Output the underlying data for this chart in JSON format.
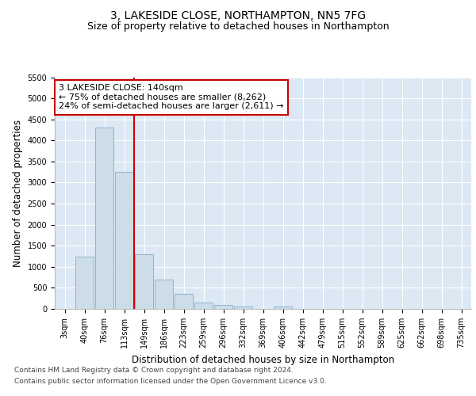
{
  "title": "3, LAKESIDE CLOSE, NORTHAMPTON, NN5 7FG",
  "subtitle": "Size of property relative to detached houses in Northampton",
  "xlabel": "Distribution of detached houses by size in Northampton",
  "ylabel": "Number of detached properties",
  "bar_color": "#ccdde8",
  "bar_edge_color": "#88aac8",
  "background_color": "#dce8f3",
  "categories": [
    "3sqm",
    "40sqm",
    "76sqm",
    "113sqm",
    "149sqm",
    "186sqm",
    "223sqm",
    "259sqm",
    "296sqm",
    "332sqm",
    "369sqm",
    "406sqm",
    "442sqm",
    "479sqm",
    "515sqm",
    "552sqm",
    "589sqm",
    "625sqm",
    "662sqm",
    "698sqm",
    "735sqm"
  ],
  "values": [
    0,
    1250,
    4300,
    3250,
    1300,
    700,
    350,
    150,
    100,
    50,
    0,
    50,
    0,
    0,
    0,
    0,
    0,
    0,
    0,
    0,
    0
  ],
  "annotation_text": "3 LAKESIDE CLOSE: 140sqm\n← 75% of detached houses are smaller (8,262)\n24% of semi-detached houses are larger (2,611) →",
  "annotation_box_color": "#ffffff",
  "annotation_border_color": "#cc0000",
  "vline_color": "#cc0000",
  "vline_x": 3.5,
  "ylim": [
    0,
    5500
  ],
  "yticks": [
    0,
    500,
    1000,
    1500,
    2000,
    2500,
    3000,
    3500,
    4000,
    4500,
    5000,
    5500
  ],
  "footer_line1": "Contains HM Land Registry data © Crown copyright and database right 2024.",
  "footer_line2": "Contains public sector information licensed under the Open Government Licence v3.0.",
  "title_fontsize": 10,
  "subtitle_fontsize": 9,
  "axis_label_fontsize": 8.5,
  "tick_fontsize": 7,
  "annotation_fontsize": 8,
  "footer_fontsize": 6.5
}
